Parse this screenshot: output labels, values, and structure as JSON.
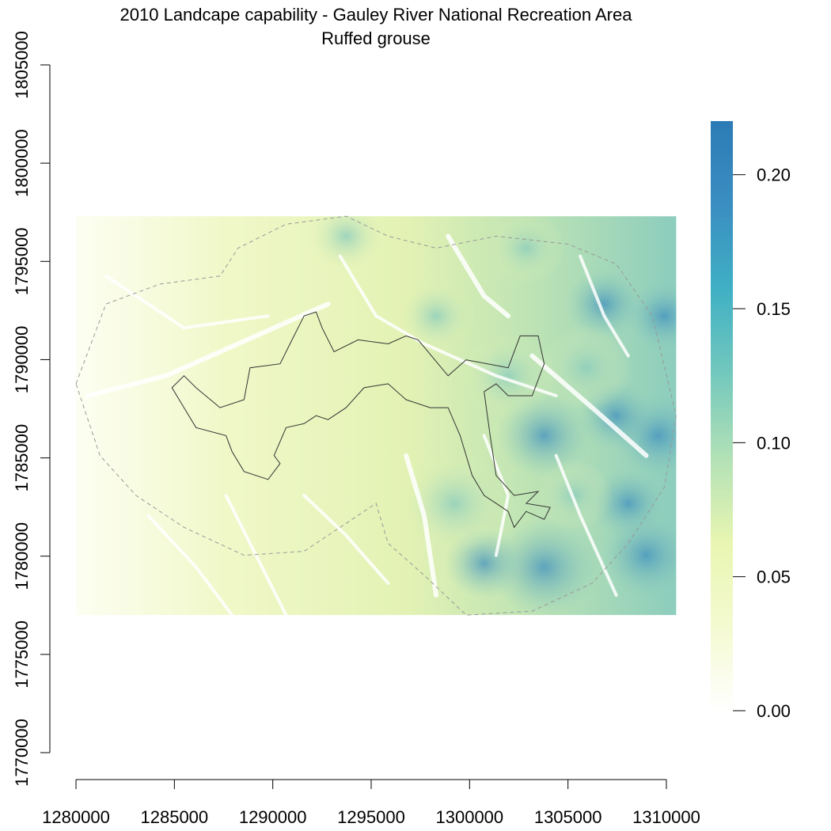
{
  "title": "2010 Landcape capability - Gauley River National Recreation Area",
  "subtitle": "Ruffed grouse",
  "x_axis": {
    "ticks": [
      "1280000",
      "1285000",
      "1290000",
      "1295000",
      "1300000",
      "1305000",
      "1310000"
    ],
    "range": [
      1280000,
      1310000
    ]
  },
  "y_axis": {
    "ticks": [
      "1770000",
      "1775000",
      "1780000",
      "1785000",
      "1790000",
      "1795000",
      "1800000",
      "1805000"
    ],
    "range": [
      1770000,
      1805000
    ]
  },
  "legend": {
    "ticks": [
      "0.00",
      "0.05",
      "0.10",
      "0.15",
      "0.20"
    ],
    "range": [
      0,
      0.22
    ],
    "colors": [
      "#ffffff",
      "#f4fad0",
      "#e8f6b1",
      "#b2e1b6",
      "#73c8bd",
      "#40b0c4",
      "#3a8ec1",
      "#2c7bb6"
    ]
  },
  "map": {
    "raster_extent": {
      "xmin": 1280000,
      "xmax": 1310500,
      "ymin": 1777000,
      "ymax": 1797300
    },
    "colors": {
      "low": "#fbfde6",
      "mid": "#e6f4b4",
      "high": "#8ccdbd",
      "peak": "#3f8fbf",
      "boundary": "#333333",
      "buffer": "#999999"
    }
  }
}
